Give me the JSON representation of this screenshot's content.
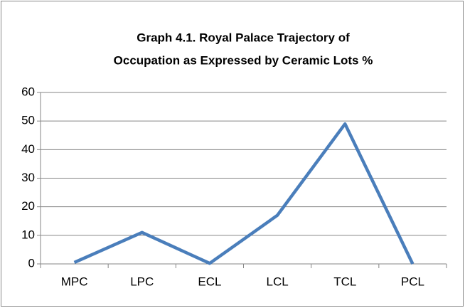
{
  "chart_data": {
    "type": "line",
    "title": [
      "Graph 4.1. Royal Palace Trajectory of",
      "Occupation as Expressed by Ceramic Lots %"
    ],
    "categories": [
      "MPC",
      "LPC",
      "ECL",
      "LCL",
      "TCL",
      "PCL"
    ],
    "series": [
      {
        "name": "Ceramic Lots %",
        "color": "#4a7ebb",
        "values": [
          0.5,
          11,
          0.2,
          17,
          49,
          0
        ]
      }
    ],
    "ylim": [
      0,
      60
    ],
    "yticks": [
      0,
      10,
      20,
      30,
      40,
      50,
      60
    ],
    "grid": true,
    "legend": false
  }
}
